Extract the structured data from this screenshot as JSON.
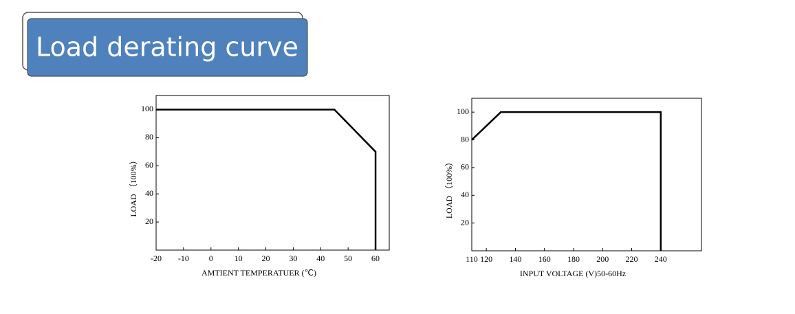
{
  "header": {
    "title": "Load derating curve"
  },
  "chart_data": [
    {
      "type": "line",
      "ylabel": "LOAD （100%）",
      "xlabel": "AMTIENT TEMPERATUER (℃)",
      "x": [
        -20,
        45,
        60,
        60
      ],
      "values": [
        100,
        100,
        70,
        0
      ],
      "color": "#000000",
      "xlim": [
        -20,
        65
      ],
      "xticks": [
        -20,
        -10,
        0,
        10,
        20,
        30,
        40,
        50,
        60
      ],
      "ylim": [
        0,
        110
      ],
      "yticks": [
        20,
        40,
        60,
        80,
        100
      ]
    },
    {
      "type": "line",
      "ylabel": "LOAD （100%）",
      "xlabel": "INPUT VOLTAGE (V)50-60Hz",
      "x": [
        110,
        130,
        240,
        240
      ],
      "values": [
        80,
        100,
        100,
        0
      ],
      "color": "#000000",
      "xlim": [
        110,
        268
      ],
      "xticks": [
        110,
        120,
        140,
        160,
        180,
        200,
        220,
        240
      ],
      "ylim": [
        0,
        110
      ],
      "yticks": [
        20,
        40,
        60,
        80,
        100
      ]
    }
  ]
}
